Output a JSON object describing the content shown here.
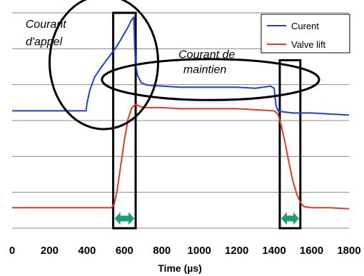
{
  "chart_data": {
    "type": "line",
    "title": "",
    "xlabel": "Time (µs)",
    "ylabel": "",
    "xlim": [
      0,
      1800
    ],
    "xticks": [
      0,
      200,
      400,
      600,
      800,
      1000,
      1200,
      1400,
      1600,
      1800
    ],
    "ylim": [
      0,
      10
    ],
    "grid": "horizontal",
    "legend_position": "top-right",
    "series": [
      {
        "name": "Curent",
        "color": "#1f3fe0",
        "x": [
          0,
          395,
          400,
          415,
          440,
          470,
          500,
          530,
          560,
          580,
          600,
          620,
          640,
          650,
          655,
          660,
          670,
          690,
          720,
          800,
          900,
          1000,
          1100,
          1200,
          1300,
          1380,
          1400,
          1410,
          1420,
          1450,
          1500,
          1600,
          1700,
          1800
        ],
        "y": [
          5.45,
          5.45,
          5.8,
          6.4,
          7.0,
          7.4,
          7.75,
          8.1,
          8.45,
          8.75,
          9.05,
          9.35,
          9.7,
          9.8,
          8.4,
          7.6,
          7.1,
          6.75,
          6.65,
          6.6,
          6.55,
          6.55,
          6.55,
          6.55,
          6.5,
          6.6,
          6.5,
          5.7,
          5.45,
          5.4,
          5.35,
          5.35,
          5.3,
          5.25
        ]
      },
      {
        "name": "Valve lift",
        "color": "#e23d1c",
        "x": [
          0,
          400,
          500,
          530,
          545,
          560,
          580,
          600,
          620,
          640,
          660,
          700,
          800,
          900,
          1000,
          1100,
          1200,
          1300,
          1400,
          1420,
          1440,
          1460,
          1480,
          1500,
          1520,
          1540,
          1560,
          1600,
          1700,
          1800
        ],
        "y": [
          0.95,
          0.95,
          0.95,
          0.95,
          1.1,
          1.7,
          2.9,
          4.1,
          5.1,
          5.6,
          5.75,
          5.6,
          5.6,
          5.55,
          5.55,
          5.55,
          5.55,
          5.5,
          5.45,
          5.3,
          4.7,
          3.9,
          3.0,
          2.2,
          1.6,
          1.2,
          1.0,
          0.95,
          0.95,
          0.9
        ]
      }
    ],
    "annotations": [
      {
        "text": "Courant",
        "x": 180,
        "y": 9.3
      },
      {
        "text": "d'appel",
        "x": 170,
        "y": 8.5
      },
      {
        "text": "Courant de",
        "x": 1040,
        "y": 7.9
      },
      {
        "text": "maintien",
        "x": 1030,
        "y": 7.2
      }
    ],
    "highlight_windows": [
      {
        "x0": 540,
        "x1": 660,
        "y0": 0,
        "y1": 10
      },
      {
        "x0": 1430,
        "x1": 1540,
        "y0": 0,
        "y1": 7.8
      }
    ],
    "ellipses": [
      {
        "cx": 490,
        "cy": 7.7,
        "rx": 290,
        "ry": 3.1
      },
      {
        "cx": 1060,
        "cy": 6.9,
        "rx": 580,
        "ry": 0.95
      }
    ],
    "range_arrows": [
      {
        "x0": 540,
        "x1": 660,
        "y": 0.45,
        "color": "#1a9e7a"
      },
      {
        "x0": 1430,
        "x1": 1540,
        "y": 0.45,
        "color": "#1a9e7a"
      }
    ]
  }
}
